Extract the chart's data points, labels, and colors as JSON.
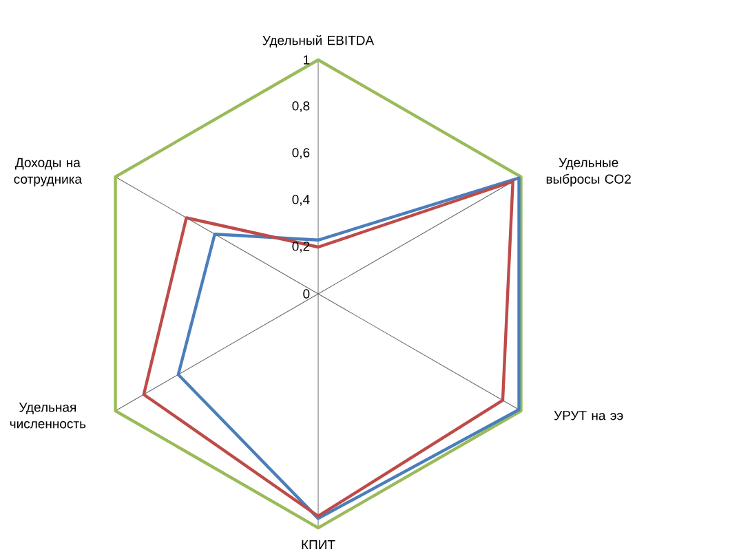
{
  "chart_data": {
    "type": "radar",
    "categories": [
      "Удельный EBITDA",
      "Удельные выбросы CO2",
      "УРУТ на ээ",
      "КПИТ",
      "Удельная численность",
      "Доходы на сотрудника"
    ],
    "series": [
      {
        "color": "#4a7ebb",
        "values": [
          0.23,
          0.99,
          0.99,
          0.96,
          0.69,
          0.51
        ]
      },
      {
        "color": "#be4b48",
        "values": [
          0.2,
          0.96,
          0.91,
          0.95,
          0.86,
          0.65
        ]
      }
    ],
    "ylim": [
      0,
      1
    ],
    "yticks": [
      {
        "value": 0,
        "label": "0"
      },
      {
        "value": 0.2,
        "label": "0,2"
      },
      {
        "value": 0.4,
        "label": "0,4"
      },
      {
        "value": 0.6,
        "label": "0,6"
      },
      {
        "value": 0.8,
        "label": "0,8"
      },
      {
        "value": 1,
        "label": "1"
      }
    ],
    "grid": true
  }
}
